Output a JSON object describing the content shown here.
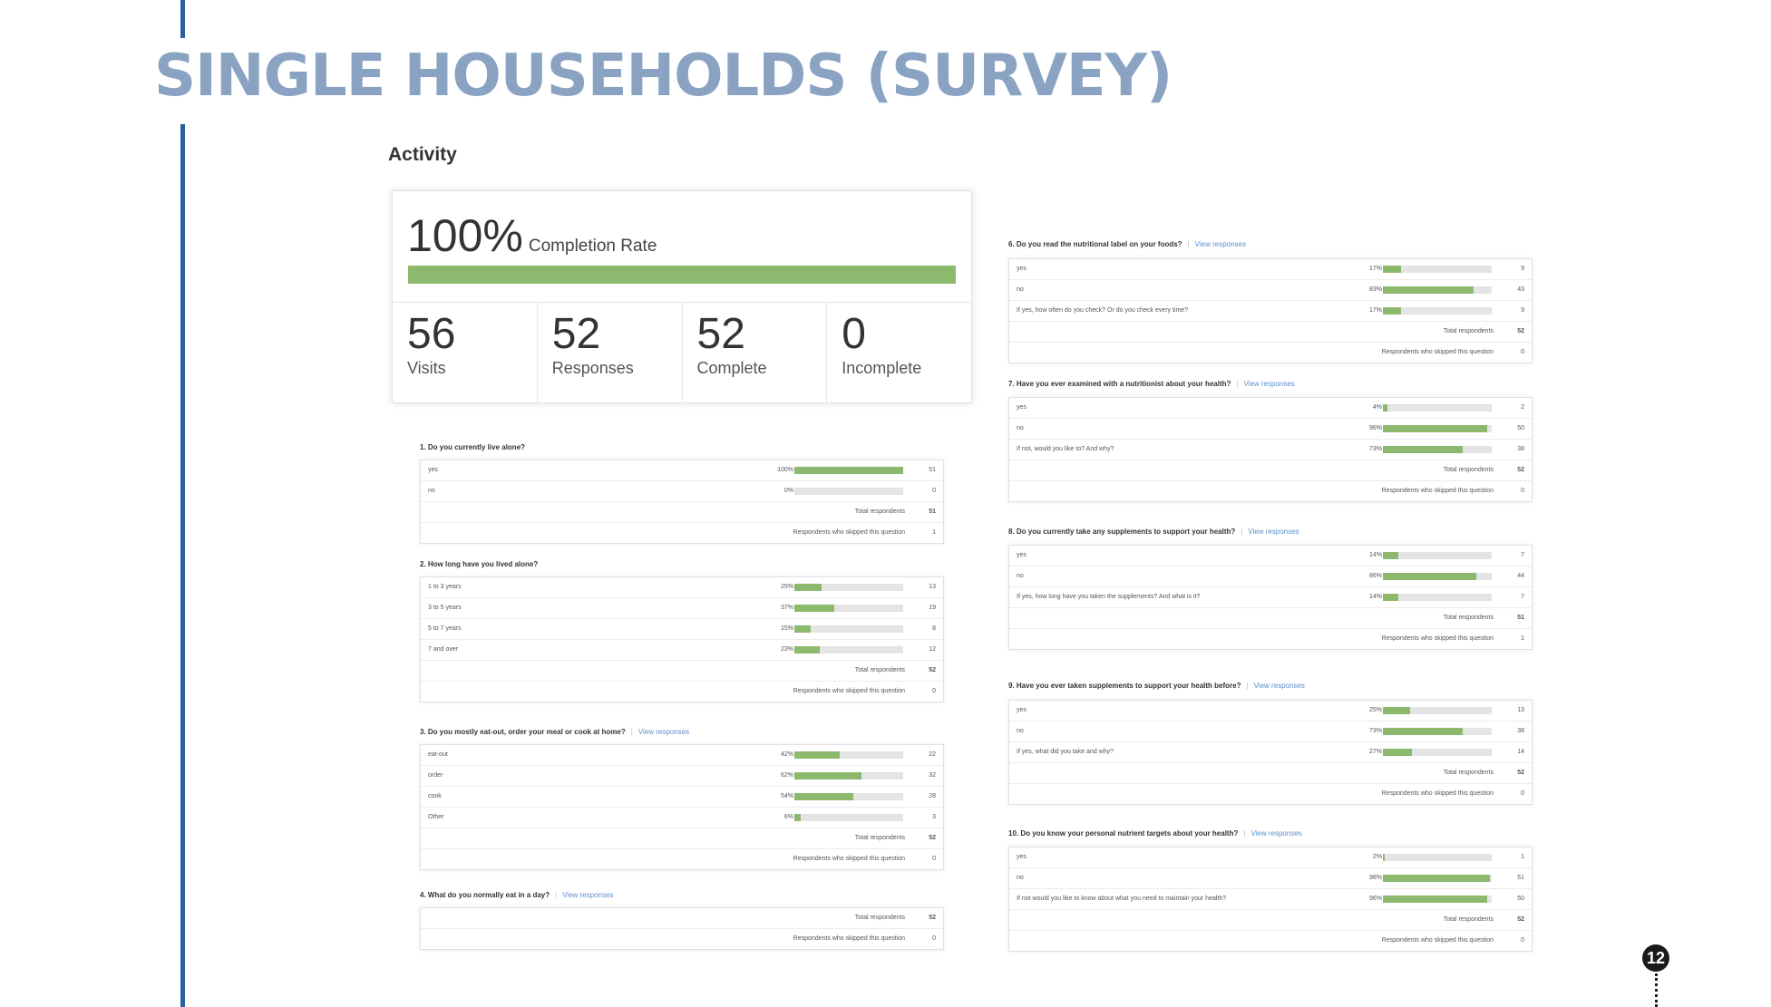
{
  "page": {
    "title": "SINGLE HOUSEHOLDS (SURVEY)",
    "page_number": "12"
  },
  "activity": {
    "heading": "Activity",
    "completion_pct": "100%",
    "completion_label": "Completion Rate",
    "completion_fraction": 1.0,
    "bar_color": "#8cb96d",
    "stats": [
      {
        "value": "56",
        "label": "Visits"
      },
      {
        "value": "52",
        "label": "Responses"
      },
      {
        "value": "52",
        "label": "Complete"
      },
      {
        "value": "0",
        "label": "Incomplete"
      }
    ]
  },
  "labels": {
    "total": "Total respondents",
    "skipped": "Respondents who skipped this question",
    "view": "View responses"
  },
  "questions": [
    {
      "title": "1. Do you currently live alone?",
      "has_view": false,
      "rows": [
        {
          "label": "yes",
          "pct": "100%",
          "frac": 1.0,
          "count": "51"
        },
        {
          "label": "no",
          "pct": "0%",
          "frac": 0.0,
          "count": "0"
        }
      ],
      "total": "51",
      "skipped": "1"
    },
    {
      "title": "2. How long have you lived alone?",
      "has_view": false,
      "rows": [
        {
          "label": "1 to 3 years",
          "pct": "25%",
          "frac": 0.25,
          "count": "13"
        },
        {
          "label": "3 to 5 years",
          "pct": "37%",
          "frac": 0.37,
          "count": "19"
        },
        {
          "label": "5 to 7 years",
          "pct": "15%",
          "frac": 0.15,
          "count": "8"
        },
        {
          "label": "7 and over",
          "pct": "23%",
          "frac": 0.23,
          "count": "12"
        }
      ],
      "total": "52",
      "skipped": "0"
    },
    {
      "title": "3. Do you mostly eat-out, order your meal or cook at home?",
      "has_view": true,
      "rows": [
        {
          "label": "eat-out",
          "pct": "42%",
          "frac": 0.42,
          "count": "22"
        },
        {
          "label": "order",
          "pct": "62%",
          "frac": 0.62,
          "count": "32"
        },
        {
          "label": "cook",
          "pct": "54%",
          "frac": 0.54,
          "count": "28"
        },
        {
          "label": "Other",
          "pct": "6%",
          "frac": 0.06,
          "count": "3"
        }
      ],
      "total": "52",
      "skipped": "0"
    },
    {
      "title": "4. What do you normally eat in a day?",
      "has_view": true,
      "rows": [],
      "total": "52",
      "skipped": "0"
    },
    {
      "title": "6. Do you read the nutritional label on your foods?",
      "has_view": true,
      "rows": [
        {
          "label": "yes",
          "pct": "17%",
          "frac": 0.17,
          "count": "9"
        },
        {
          "label": "no",
          "pct": "83%",
          "frac": 0.83,
          "count": "43"
        },
        {
          "label": "If yes, how often do you check? Or do you check every time?",
          "pct": "17%",
          "frac": 0.17,
          "count": "9"
        }
      ],
      "total": "52",
      "skipped": "0"
    },
    {
      "title": "7. Have you ever examined with a nutritionist about your health?",
      "has_view": true,
      "rows": [
        {
          "label": "yes",
          "pct": "4%",
          "frac": 0.04,
          "count": "2"
        },
        {
          "label": "no",
          "pct": "96%",
          "frac": 0.96,
          "count": "50"
        },
        {
          "label": "If not, would you like to? And why?",
          "pct": "73%",
          "frac": 0.73,
          "count": "38"
        }
      ],
      "total": "52",
      "skipped": "0"
    },
    {
      "title": "8. Do you currently take any supplements to support your health?",
      "has_view": true,
      "rows": [
        {
          "label": "yes",
          "pct": "14%",
          "frac": 0.14,
          "count": "7"
        },
        {
          "label": "no",
          "pct": "86%",
          "frac": 0.86,
          "count": "44"
        },
        {
          "label": "If yes, how long have you taken the supplements? And what is it?",
          "pct": "14%",
          "frac": 0.14,
          "count": "7"
        }
      ],
      "total": "51",
      "skipped": "1"
    },
    {
      "title": "9. Have you ever taken supplements to support your health before?",
      "has_view": true,
      "rows": [
        {
          "label": "yes",
          "pct": "25%",
          "frac": 0.25,
          "count": "13"
        },
        {
          "label": "no",
          "pct": "73%",
          "frac": 0.73,
          "count": "38"
        },
        {
          "label": "If yes, what did you take and why?",
          "pct": "27%",
          "frac": 0.27,
          "count": "14"
        }
      ],
      "total": "52",
      "skipped": "0"
    },
    {
      "title": "10. Do you know your personal nutrient targets about your health?",
      "has_view": true,
      "rows": [
        {
          "label": "yes",
          "pct": "2%",
          "frac": 0.02,
          "count": "1"
        },
        {
          "label": "no",
          "pct": "98%",
          "frac": 0.98,
          "count": "51"
        },
        {
          "label": "If not would you like to know about what you need to maintain your health?",
          "pct": "96%",
          "frac": 0.96,
          "count": "50"
        }
      ],
      "total": "52",
      "skipped": "0"
    }
  ]
}
